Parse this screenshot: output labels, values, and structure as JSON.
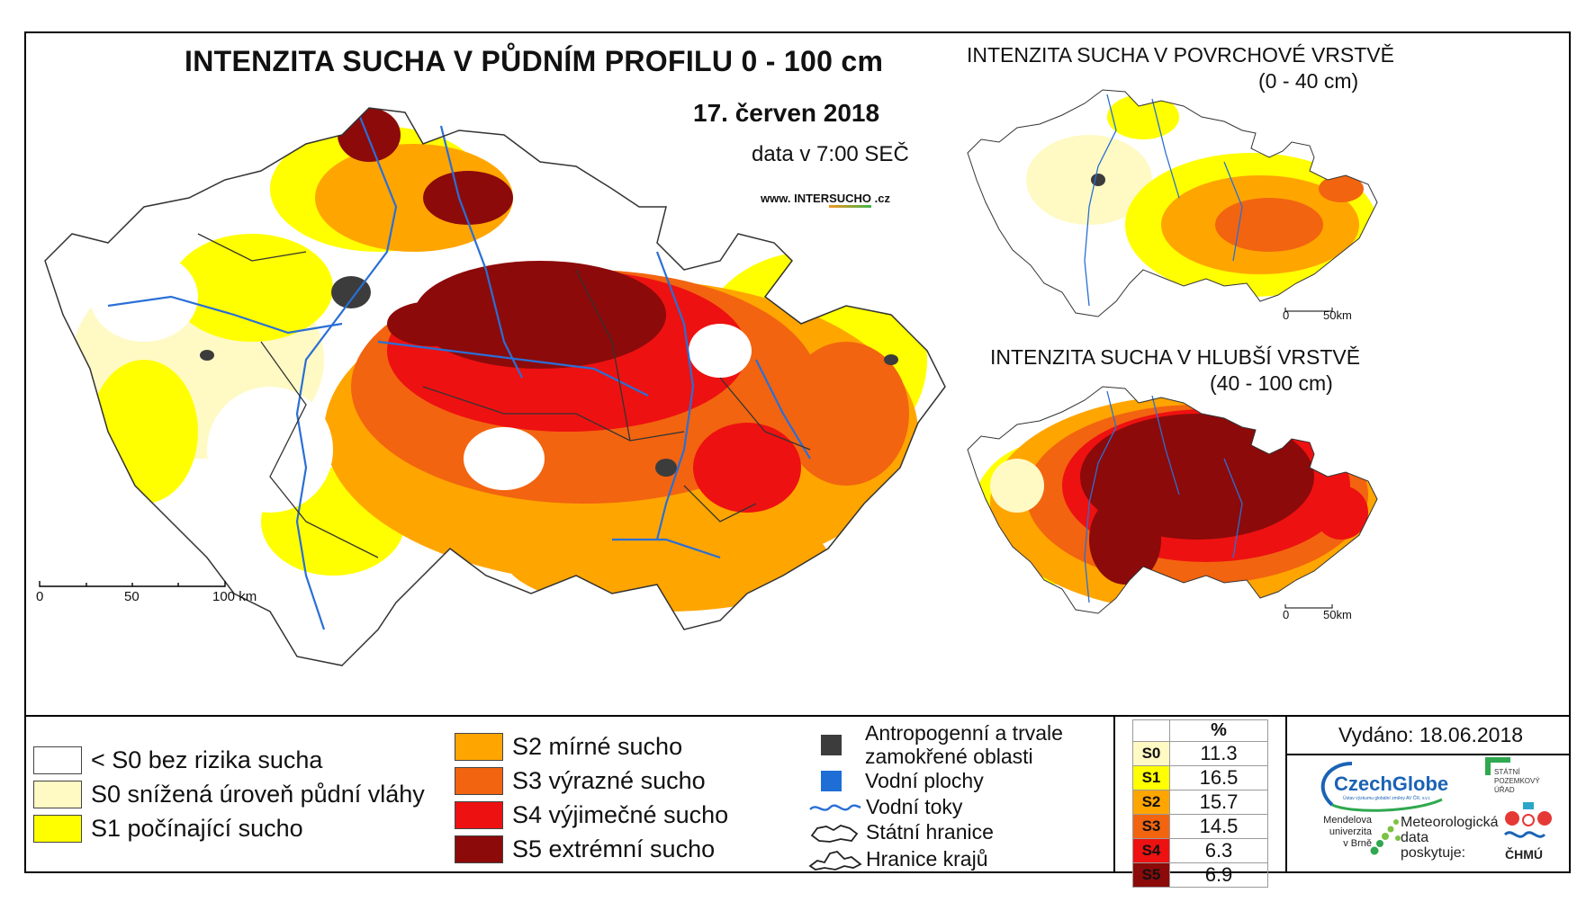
{
  "main": {
    "title": "INTENZITA SUCHA V PŮDNÍM PROFILU 0 - 100 cm",
    "date": "17. červen 2018",
    "data_time": "data v 7:00 SEČ",
    "website_prefix": "www. INTER",
    "website_highlight": "SUCHO",
    "website_suffix": " .cz",
    "scale_labels": [
      "0",
      "50",
      "100 km"
    ]
  },
  "inset_top": {
    "title": "INTENZITA SUCHA V POVRCHOVÉ VRSTVĚ",
    "subtitle": "(0 - 40 cm)",
    "scale_labels": [
      "0",
      "50km"
    ]
  },
  "inset_bottom": {
    "title": "INTENZITA SUCHA V HLUBŠÍ VRSTVĚ",
    "subtitle": "(40 - 100 cm)",
    "scale_labels": [
      "0",
      "50km"
    ]
  },
  "legend_intensity": [
    {
      "label": "< S0 bez rizika sucha",
      "color": "#ffffff"
    },
    {
      "label": "S0 snížená úroveň půdní vláhy",
      "color": "#fff9c4"
    },
    {
      "label": "S1 počínající sucho",
      "color": "#ffff00"
    },
    {
      "label": "S2 mírné sucho",
      "color": "#ffa500"
    },
    {
      "label": "S3 výrazné sucho",
      "color": "#f26410"
    },
    {
      "label": "S4 výjimečné sucho",
      "color": "#ee1111"
    },
    {
      "label": "S5 extrémní sucho",
      "color": "#8c0a0a"
    }
  ],
  "legend_features": [
    {
      "label": "Antropogenní a trvale",
      "label2": "zamokřené oblasti",
      "icon": "dark-square-icon",
      "color": "#3c3c3c"
    },
    {
      "label": "Vodní plochy",
      "icon": "blue-square-icon",
      "color": "#1e6ed6"
    },
    {
      "label": "Vodní toky",
      "icon": "river-line-icon",
      "color": "#2a6fd6"
    },
    {
      "label": "Státní hranice",
      "icon": "state-border-icon"
    },
    {
      "label": "Hranice krajů",
      "icon": "region-border-icon"
    }
  ],
  "percent_table": {
    "header": "%",
    "rows": [
      {
        "cls": "S0",
        "value": "11.3",
        "color": "#fff9c4"
      },
      {
        "cls": "S1",
        "value": "16.5",
        "color": "#ffff00"
      },
      {
        "cls": "S2",
        "value": "15.7",
        "color": "#ffa500"
      },
      {
        "cls": "S3",
        "value": "14.5",
        "color": "#f26410"
      },
      {
        "cls": "S4",
        "value": "6.3",
        "color": "#ee1111"
      },
      {
        "cls": "S5",
        "value": "6.9",
        "color": "#8c0a0a"
      }
    ]
  },
  "issued": "Vydáno: 18.06.2018",
  "logos": {
    "czechglobe": "CzechGlobe",
    "czechglobe_sub": "Ústav výzkumu globální změny AV ČR, v.v.i.",
    "spu": [
      "STÁTNÍ",
      "POZEMKOVÝ",
      "ÚŘAD"
    ],
    "mendel": [
      "Mendelova",
      "univerzita",
      "v Brně"
    ],
    "meteo": [
      "Meteorologická",
      "data",
      "poskytuje:"
    ],
    "chmu": "ČHMÚ"
  }
}
